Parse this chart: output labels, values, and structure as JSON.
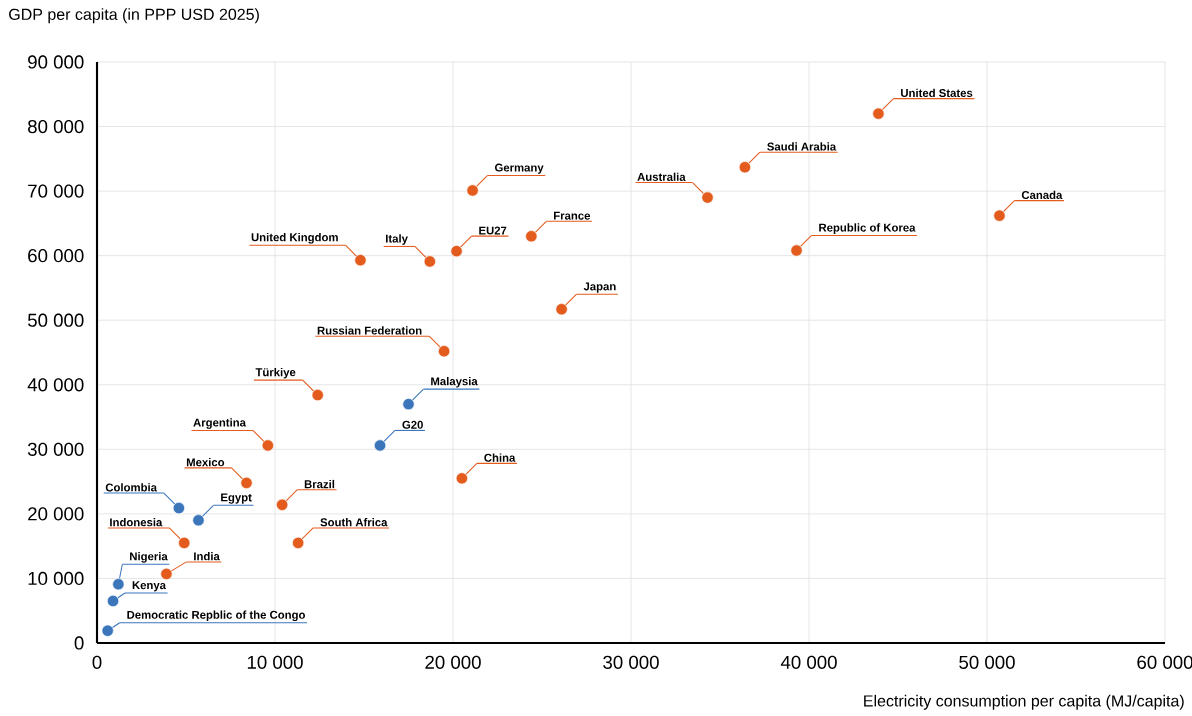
{
  "chart_data": {
    "type": "scatter",
    "xlabel": "Electricity consumption per capita (MJ/capita)",
    "ylabel": "GDP per capita (in PPP USD 2025)",
    "xlim": [
      0,
      60000
    ],
    "ylim": [
      0,
      90000
    ],
    "xticks": [
      0,
      {
        "value": 10000,
        "label": "10 000"
      },
      {
        "value": 20000,
        "label": "20 000"
      },
      {
        "value": 30000,
        "label": "30 000"
      },
      {
        "value": 40000,
        "label": "40 000"
      },
      {
        "value": 50000,
        "label": "50 000"
      },
      {
        "value": 60000,
        "label": "60 000"
      }
    ],
    "yticks": [
      0,
      {
        "value": 10000,
        "label": "10 000"
      },
      {
        "value": 20000,
        "label": "20 000"
      },
      {
        "value": 30000,
        "label": "30 000"
      },
      {
        "value": 40000,
        "label": "40 000"
      },
      {
        "value": 50000,
        "label": "50 000"
      },
      {
        "value": 60000,
        "label": "60 000"
      },
      {
        "value": 70000,
        "label": "70 000"
      },
      {
        "value": 80000,
        "label": "80 000"
      },
      {
        "value": 90000,
        "label": "90 000"
      }
    ],
    "grid": true,
    "series": [
      {
        "color": "#e35b1d",
        "x": [
          43900,
          36400,
          50700,
          34300,
          21100,
          24400,
          39300,
          20200,
          18700,
          14800,
          26100,
          19500,
          12400,
          9600,
          8400,
          20500,
          10400,
          11300,
          4900,
          3900
        ],
        "values": [
          82000,
          73700,
          66200,
          69000,
          70100,
          63000,
          60800,
          60700,
          59100,
          59300,
          51700,
          45200,
          38400,
          30600,
          24800,
          25500,
          21400,
          15500,
          15500,
          10700
        ]
      },
      {
        "color": "#3b76bb",
        "x": [
          17500,
          15900,
          4600,
          5700,
          1200,
          900,
          600
        ],
        "values": [
          37000,
          30600,
          20900,
          19000,
          9100,
          6500,
          1900
        ]
      }
    ],
    "annotations": [
      {
        "text": "United States",
        "x": 43900,
        "y": 82000
      },
      {
        "text": "Saudi Arabia",
        "x": 36400,
        "y": 73700
      },
      {
        "text": "Canada",
        "x": 50700,
        "y": 66200
      },
      {
        "text": "Australia",
        "x": 34300,
        "y": 69000
      },
      {
        "text": "Germany",
        "x": 21100,
        "y": 70100
      },
      {
        "text": "France",
        "x": 24400,
        "y": 63000
      },
      {
        "text": "Republic of Korea",
        "x": 39300,
        "y": 60800
      },
      {
        "text": "EU27",
        "x": 20200,
        "y": 60700
      },
      {
        "text": "Italy",
        "x": 18700,
        "y": 59100
      },
      {
        "text": "United Kingdom",
        "x": 14800,
        "y": 59300
      },
      {
        "text": "Japan",
        "x": 26100,
        "y": 51700
      },
      {
        "text": "Russian Federation",
        "x": 19500,
        "y": 45200
      },
      {
        "text": "Türkiye",
        "x": 12400,
        "y": 38400
      },
      {
        "text": "Argentina",
        "x": 9600,
        "y": 30600
      },
      {
        "text": "Mexico",
        "x": 8400,
        "y": 24800
      },
      {
        "text": "China",
        "x": 20500,
        "y": 25500
      },
      {
        "text": "Brazil",
        "x": 10400,
        "y": 21400
      },
      {
        "text": "South Africa",
        "x": 11300,
        "y": 15500
      },
      {
        "text": "Indonesia",
        "x": 4900,
        "y": 15500
      },
      {
        "text": "India",
        "x": 3900,
        "y": 10700
      },
      {
        "text": "Malaysia",
        "x": 17500,
        "y": 37000
      },
      {
        "text": "G20",
        "x": 15900,
        "y": 30600
      },
      {
        "text": "Colombia",
        "x": 4600,
        "y": 20900
      },
      {
        "text": "Egypt",
        "x": 5700,
        "y": 19000
      },
      {
        "text": "Nigeria",
        "x": 1200,
        "y": 9100
      },
      {
        "text": "Kenya",
        "x": 900,
        "y": 6500
      },
      {
        "text": "Democratic Repblic of the Congo",
        "x": 600,
        "y": 1900
      }
    ]
  }
}
